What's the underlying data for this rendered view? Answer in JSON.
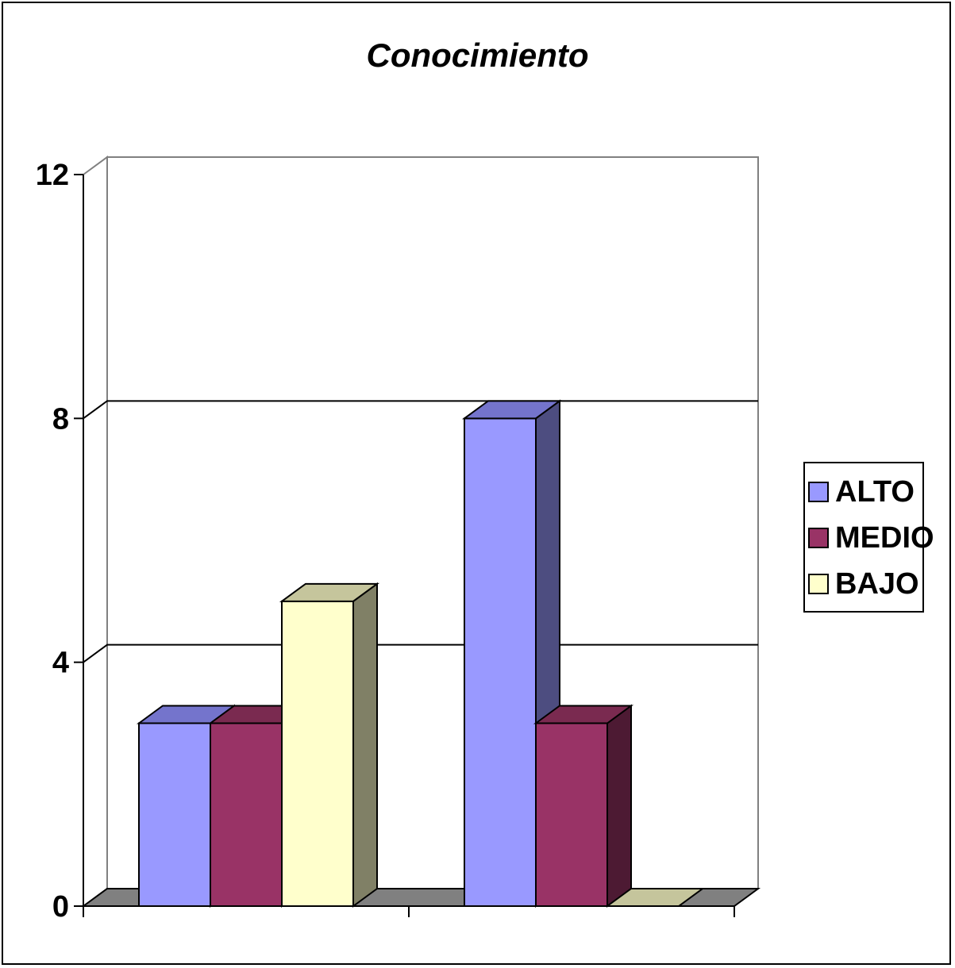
{
  "colors": {
    "ALTO": {
      "front": "#9999ff",
      "top": "#7474cc",
      "side": "#4d4d80"
    },
    "MEDIO": {
      "front": "#993366",
      "top": "#7a2a50",
      "side": "#4d1a33"
    },
    "BAJO": {
      "front": "#ffffcc",
      "top": "#c5c59c",
      "side": "#808066"
    },
    "floor": "#808080",
    "wall_grid": "#000000",
    "wall_edge": "#808080"
  },
  "chart_data": {
    "type": "bar",
    "title": "Conocimiento",
    "xlabel": "",
    "ylabel": "",
    "categories": [
      "",
      ""
    ],
    "series": [
      {
        "name": "ALTO",
        "values": [
          3,
          8
        ]
      },
      {
        "name": "MEDIO",
        "values": [
          3,
          3
        ]
      },
      {
        "name": "BAJO",
        "values": [
          5,
          0
        ]
      }
    ],
    "ylim": [
      0,
      12
    ],
    "yticks": [
      "0",
      "4",
      "8",
      "12"
    ],
    "grid": true,
    "legend_position": "right",
    "style": "3d-clustered-column"
  }
}
